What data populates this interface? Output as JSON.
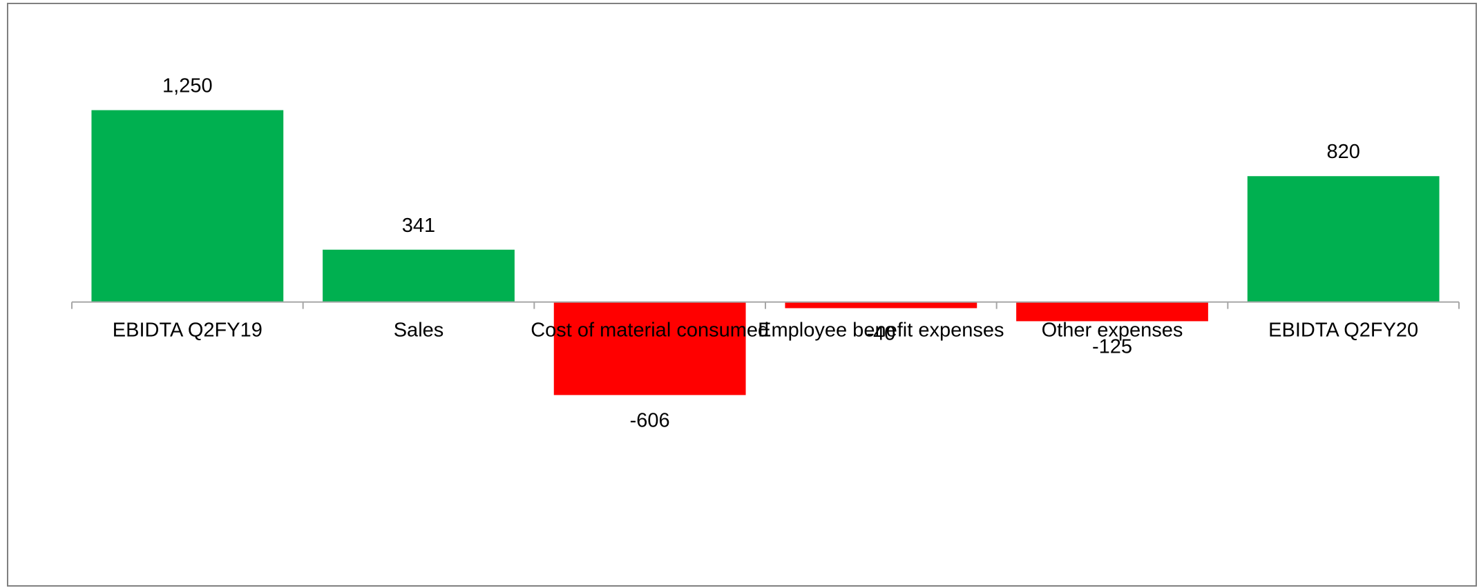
{
  "chart_data": {
    "type": "bar",
    "categories": [
      "EBIDTA Q2FY19",
      "Sales",
      "Cost of material consumed",
      "Employee benefit expenses",
      "Other expenses",
      "EBIDTA Q2FY20"
    ],
    "values": [
      1250,
      341,
      -606,
      -40,
      -125,
      820
    ],
    "data_labels": [
      "1,250",
      "341",
      "-606",
      "-40",
      "-125",
      "820"
    ],
    "title": "",
    "xlabel": "",
    "ylabel": "",
    "ylim": [
      -1890,
      1500
    ],
    "grid": false,
    "legend": "none",
    "colors": {
      "positive": "#00b050",
      "negative": "#ff0000",
      "axis": "#a6a6a6",
      "frame": "#7f7f7f"
    }
  }
}
